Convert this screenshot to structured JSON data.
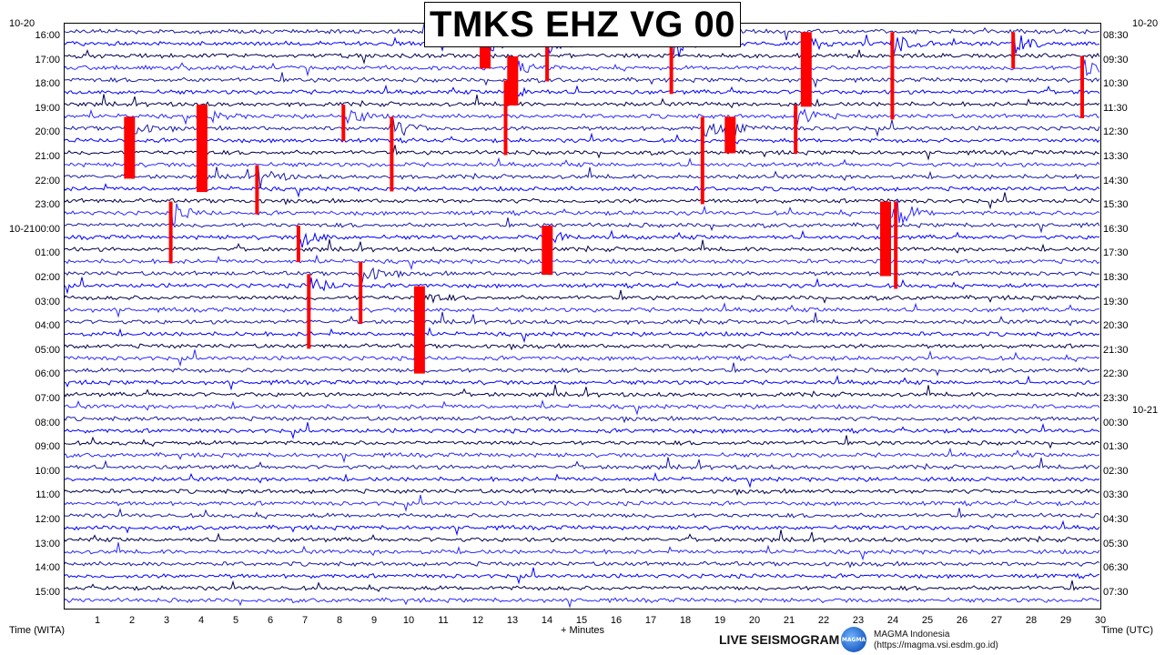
{
  "chart_data": {
    "type": "line",
    "title": "TMKS EHZ VG 00",
    "xlabel": "+ Minutes",
    "ylabel_left": "Time (WITA)",
    "ylabel_right": "Time (UTC)",
    "x_ticks": [
      "1",
      "2",
      "3",
      "4",
      "5",
      "6",
      "7",
      "8",
      "9",
      "10",
      "11",
      "12",
      "13",
      "14",
      "15",
      "16",
      "17",
      "18",
      "19",
      "20",
      "21",
      "22",
      "23",
      "24",
      "25",
      "26",
      "27",
      "28",
      "29",
      "30"
    ],
    "xlim": [
      0,
      30
    ],
    "date_labels_left": [
      "10-20",
      "10-21"
    ],
    "date_labels_right": [
      "10-20",
      "10-21"
    ],
    "left_hours": [
      "16:00",
      "17:00",
      "18:00",
      "19:00",
      "20:00",
      "21:00",
      "22:00",
      "23:00",
      "00:00",
      "01:00",
      "02:00",
      "03:00",
      "04:00",
      "05:00",
      "06:00",
      "07:00",
      "08:00",
      "09:00",
      "10:00",
      "11:00",
      "12:00",
      "13:00",
      "14:00",
      "15:00"
    ],
    "right_hours": [
      "08:30",
      "09:30",
      "10:30",
      "11:30",
      "12:30",
      "13:30",
      "14:30",
      "15:30",
      "16:30",
      "17:30",
      "18:30",
      "19:30",
      "20:30",
      "21:30",
      "22:30",
      "23:30",
      "00:30",
      "01:30",
      "02:30",
      "03:30",
      "04:30",
      "05:30",
      "06:30",
      "07:30"
    ],
    "series_colors": [
      "#1a1aa8",
      "#0000ff",
      "#00004d",
      "#2a2aff"
    ],
    "clip_color": "#ff0000",
    "events": [
      {
        "row": 1,
        "minute": 12.1
      },
      {
        "row": 1,
        "minute": 14.0
      },
      {
        "row": 1,
        "minute": 17.6
      },
      {
        "row": 1,
        "minute": 21.4
      },
      {
        "row": 1,
        "minute": 24.0
      },
      {
        "row": 1,
        "minute": 27.5
      },
      {
        "row": 3,
        "minute": 12.9
      },
      {
        "row": 3,
        "minute": 29.5
      },
      {
        "row": 5,
        "minute": 12.8
      },
      {
        "row": 7,
        "minute": 3.9
      },
      {
        "row": 7,
        "minute": 8.1
      },
      {
        "row": 7,
        "minute": 21.2
      },
      {
        "row": 8,
        "minute": 1.8
      },
      {
        "row": 8,
        "minute": 9.5
      },
      {
        "row": 8,
        "minute": 18.5
      },
      {
        "row": 8,
        "minute": 19.2
      },
      {
        "row": 12,
        "minute": 5.6
      },
      {
        "row": 15,
        "minute": 3.1
      },
      {
        "row": 15,
        "minute": 23.7
      },
      {
        "row": 15,
        "minute": 24.1
      },
      {
        "row": 17,
        "minute": 6.8
      },
      {
        "row": 17,
        "minute": 13.9
      },
      {
        "row": 20,
        "minute": 8.6
      },
      {
        "row": 21,
        "minute": 7.1
      },
      {
        "row": 22,
        "minute": 10.2
      }
    ],
    "x_unit": "minutes"
  },
  "footer": {
    "live": "LIVE SEISMOGRAM",
    "logo_text": "MAGMA",
    "org_name": "MAGMA Indonesia",
    "org_url": "(https://magma.vsi.esdm.go.id)"
  }
}
